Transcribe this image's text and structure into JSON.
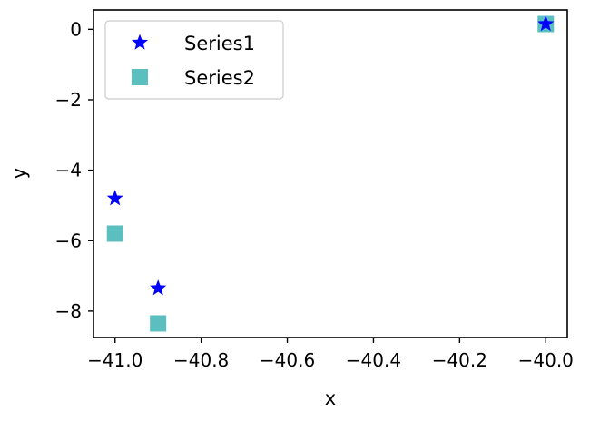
{
  "chart_data": {
    "type": "scatter",
    "xlabel": "x",
    "ylabel": "y",
    "xlim": [
      -41.05,
      -39.95
    ],
    "ylim": [
      -8.75,
      0.55
    ],
    "xticks": [
      -41.0,
      -40.8,
      -40.6,
      -40.4,
      -40.2,
      -40.0
    ],
    "xtick_labels": [
      "−41.0",
      "−40.8",
      "−40.6",
      "−40.4",
      "−40.2",
      "−40.0"
    ],
    "yticks": [
      0,
      -2,
      -4,
      -6,
      -8
    ],
    "ytick_labels": [
      "0",
      "−2",
      "−4",
      "−6",
      "−8"
    ],
    "grid": false,
    "legend_position": "top-left",
    "series": [
      {
        "name": "Series1",
        "marker": "star",
        "color": "#0000ff",
        "points": [
          {
            "x": -41.0,
            "y": -4.8
          },
          {
            "x": -40.9,
            "y": -7.35
          },
          {
            "x": -40.0,
            "y": 0.15
          }
        ]
      },
      {
        "name": "Series2",
        "marker": "square",
        "color": "#5bbfc0",
        "points": [
          {
            "x": -41.0,
            "y": -5.8
          },
          {
            "x": -40.9,
            "y": -8.35
          },
          {
            "x": -40.0,
            "y": 0.15
          }
        ]
      }
    ]
  }
}
